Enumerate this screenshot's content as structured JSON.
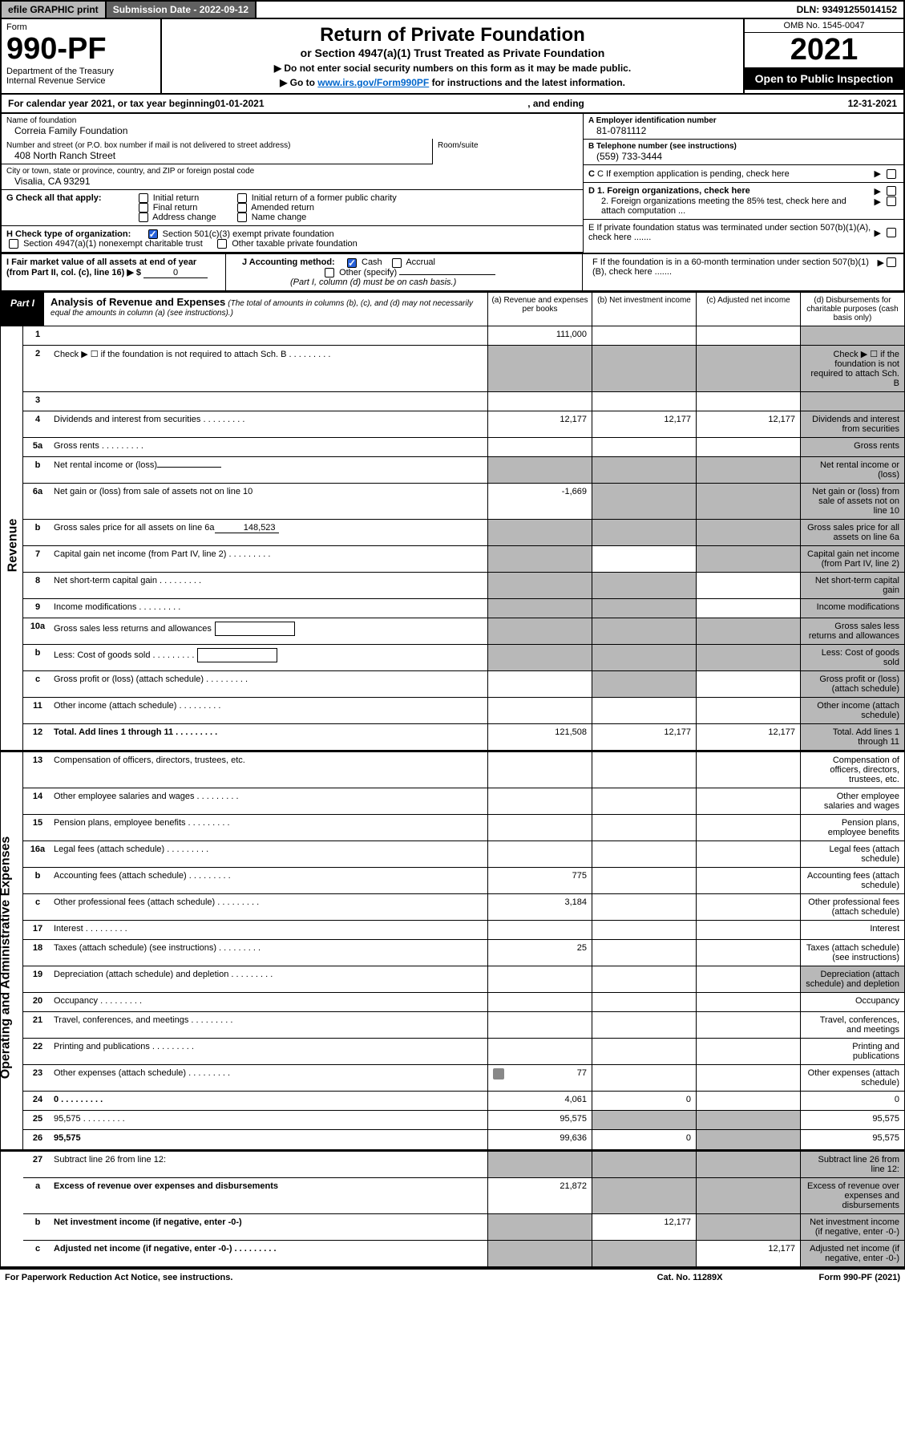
{
  "topbar": {
    "efile": "efile GRAPHIC print",
    "submission_label": "Submission Date - ",
    "submission_date": "2022-09-12",
    "dln_label": "DLN: ",
    "dln": "93491255014152"
  },
  "header": {
    "form_word": "Form",
    "form_number": "990-PF",
    "dept1": "Department of the Treasury",
    "dept2": "Internal Revenue Service",
    "title": "Return of Private Foundation",
    "subtitle": "or Section 4947(a)(1) Trust Treated as Private Foundation",
    "instr1": "▶ Do not enter social security numbers on this form as it may be made public.",
    "instr2_pre": "▶ Go to ",
    "instr2_link": "www.irs.gov/Form990PF",
    "instr2_post": " for instructions and the latest information.",
    "omb": "OMB No. 1545-0047",
    "year": "2021",
    "open": "Open to Public Inspection"
  },
  "cal": {
    "pre": "For calendar year 2021, or tax year beginning ",
    "begin": "01-01-2021",
    "mid": ", and ending ",
    "end": "12-31-2021"
  },
  "left": {
    "name_lbl": "Name of foundation",
    "name": "Correia Family Foundation",
    "addr_lbl": "Number and street (or P.O. box number if mail is not delivered to street address)",
    "addr": "408 North Ranch Street",
    "room_lbl": "Room/suite",
    "city_lbl": "City or town, state or province, country, and ZIP or foreign postal code",
    "city": "Visalia, CA  93291"
  },
  "right": {
    "a_lbl": "A Employer identification number",
    "a_val": "81-0781112",
    "b_lbl": "B Telephone number (see instructions)",
    "b_val": "(559) 733-3444",
    "c_lbl": "C If exemption application is pending, check here",
    "d1_lbl": "D 1. Foreign organizations, check here",
    "d2_lbl": "2. Foreign organizations meeting the 85% test, check here and attach computation ...",
    "e_lbl": "E  If private foundation status was terminated under section 507(b)(1)(A), check here .......",
    "f_lbl": "F  If the foundation is in a 60-month termination under section 507(b)(1)(B), check here .......",
    "arrow": "▶"
  },
  "g": {
    "lbl": "G Check all that apply:",
    "opts": [
      "Initial return",
      "Final return",
      "Address change",
      "Initial return of a former public charity",
      "Amended return",
      "Name change"
    ]
  },
  "h": {
    "lbl": "H Check type of organization:",
    "opt1": "Section 501(c)(3) exempt private foundation",
    "opt2": "Section 4947(a)(1) nonexempt charitable trust",
    "opt3": "Other taxable private foundation"
  },
  "i": {
    "lbl": "I Fair market value of all assets at end of year (from Part II, col. (c), line 16) ▶ $",
    "val": "0"
  },
  "j": {
    "lbl": "J Accounting method:",
    "cash": "Cash",
    "accrual": "Accrual",
    "other": "Other (specify)",
    "note": "(Part I, column (d) must be on cash basis.)"
  },
  "part1": {
    "label": "Part I",
    "title": "Analysis of Revenue and Expenses",
    "note": "(The total of amounts in columns (b), (c), and (d) may not necessarily equal the amounts in column (a) (see instructions).)",
    "col_a": "(a)  Revenue and expenses per books",
    "col_b": "(b)  Net investment income",
    "col_c": "(c)  Adjusted net income",
    "col_d": "(d)  Disbursements for charitable purposes (cash basis only)"
  },
  "side": {
    "revenue": "Revenue",
    "expenses": "Operating and Administrative Expenses"
  },
  "rows": [
    {
      "n": "1",
      "d": "",
      "a": "111,000",
      "b": "",
      "c": "",
      "sh": [
        "d"
      ]
    },
    {
      "n": "2",
      "d": "Check ▶ ☐ if the foundation is not required to attach Sch. B",
      "dots": true,
      "sh": [
        "a",
        "b",
        "c",
        "d"
      ]
    },
    {
      "n": "3",
      "d": "",
      "a": "",
      "b": "",
      "c": "",
      "sh": [
        "d"
      ]
    },
    {
      "n": "4",
      "d": "Dividends and interest from securities",
      "dots": true,
      "a": "12,177",
      "b": "12,177",
      "c": "12,177",
      "sh": [
        "d"
      ]
    },
    {
      "n": "5a",
      "d": "Gross rents",
      "dots": true,
      "sh": [
        "d"
      ]
    },
    {
      "n": "b",
      "d": "Net rental income or (loss)",
      "inline": "",
      "sh": [
        "a",
        "b",
        "c",
        "d"
      ]
    },
    {
      "n": "6a",
      "d": "Net gain or (loss) from sale of assets not on line 10",
      "a": "-1,669",
      "sh": [
        "b",
        "c",
        "d"
      ]
    },
    {
      "n": "b",
      "d": "Gross sales price for all assets on line 6a",
      "inline": "148,523",
      "sh": [
        "a",
        "b",
        "c",
        "d"
      ]
    },
    {
      "n": "7",
      "d": "Capital gain net income (from Part IV, line 2)",
      "dots": true,
      "sh": [
        "a",
        "c",
        "d"
      ]
    },
    {
      "n": "8",
      "d": "Net short-term capital gain",
      "dots": true,
      "sh": [
        "a",
        "b",
        "d"
      ]
    },
    {
      "n": "9",
      "d": "Income modifications",
      "dots": true,
      "sh": [
        "a",
        "b",
        "d"
      ]
    },
    {
      "n": "10a",
      "d": "Gross sales less returns and allowances",
      "box": true,
      "sh": [
        "a",
        "b",
        "c",
        "d"
      ]
    },
    {
      "n": "b",
      "d": "Less: Cost of goods sold",
      "dots": true,
      "box": true,
      "sh": [
        "a",
        "b",
        "c",
        "d"
      ]
    },
    {
      "n": "c",
      "d": "Gross profit or (loss) (attach schedule)",
      "dots": true,
      "sh": [
        "b",
        "d"
      ]
    },
    {
      "n": "11",
      "d": "Other income (attach schedule)",
      "dots": true,
      "sh": [
        "d"
      ]
    },
    {
      "n": "12",
      "d": "Total. Add lines 1 through 11",
      "dots": true,
      "bold": true,
      "a": "121,508",
      "b": "12,177",
      "c": "12,177",
      "sh": [
        "d"
      ]
    }
  ],
  "exp_rows": [
    {
      "n": "13",
      "d": "Compensation of officers, directors, trustees, etc."
    },
    {
      "n": "14",
      "d": "Other employee salaries and wages",
      "dots": true
    },
    {
      "n": "15",
      "d": "Pension plans, employee benefits",
      "dots": true
    },
    {
      "n": "16a",
      "d": "Legal fees (attach schedule)",
      "dots": true
    },
    {
      "n": "b",
      "d": "Accounting fees (attach schedule)",
      "dots": true,
      "a": "775"
    },
    {
      "n": "c",
      "d": "Other professional fees (attach schedule)",
      "dots": true,
      "a": "3,184"
    },
    {
      "n": "17",
      "d": "Interest",
      "dots": true
    },
    {
      "n": "18",
      "d": "Taxes (attach schedule) (see instructions)",
      "dots": true,
      "a": "25"
    },
    {
      "n": "19",
      "d": "Depreciation (attach schedule) and depletion",
      "dots": true,
      "sh": [
        "d"
      ]
    },
    {
      "n": "20",
      "d": "Occupancy",
      "dots": true
    },
    {
      "n": "21",
      "d": "Travel, conferences, and meetings",
      "dots": true
    },
    {
      "n": "22",
      "d": "Printing and publications",
      "dots": true
    },
    {
      "n": "23",
      "d": "Other expenses (attach schedule)",
      "dots": true,
      "a": "77",
      "icon": true
    },
    {
      "n": "24",
      "d": "0",
      "dots": true,
      "bold": true,
      "a": "4,061",
      "b": "0"
    },
    {
      "n": "25",
      "d": "95,575",
      "dots": true,
      "a": "95,575",
      "sh": [
        "b",
        "c"
      ]
    },
    {
      "n": "26",
      "d": "95,575",
      "bold": true,
      "a": "99,636",
      "b": "0",
      "sh": [
        "c"
      ]
    }
  ],
  "sum_rows": [
    {
      "n": "27",
      "d": "Subtract line 26 from line 12:",
      "sh": [
        "a",
        "b",
        "c",
        "d"
      ]
    },
    {
      "n": "a",
      "d": "Excess of revenue over expenses and disbursements",
      "bold": true,
      "a": "21,872",
      "sh": [
        "b",
        "c",
        "d"
      ]
    },
    {
      "n": "b",
      "d": "Net investment income (if negative, enter -0-)",
      "bold": true,
      "b": "12,177",
      "sh": [
        "a",
        "c",
        "d"
      ]
    },
    {
      "n": "c",
      "d": "Adjusted net income (if negative, enter -0-)",
      "dots": true,
      "bold": true,
      "c": "12,177",
      "sh": [
        "a",
        "b",
        "d"
      ]
    }
  ],
  "footer": {
    "l": "For Paperwork Reduction Act Notice, see instructions.",
    "m": "Cat. No. 11289X",
    "r": "Form 990-PF (2021)"
  }
}
